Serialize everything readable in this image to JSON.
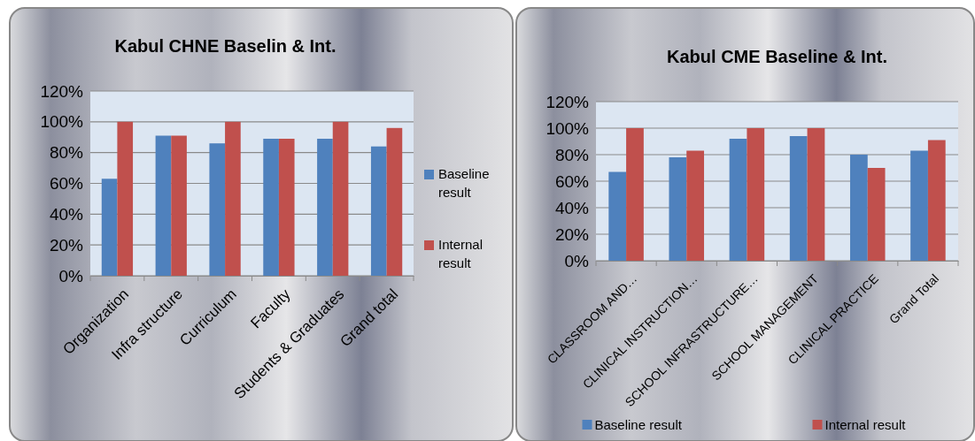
{
  "chart_data": [
    {
      "type": "bar",
      "title": "Kabul CHNE Baselin & Int.",
      "categories": [
        "Organization",
        "Infra structure",
        "Curriculum",
        "Faculty",
        "Students & Graduates",
        "Grand total"
      ],
      "series": [
        {
          "name": "Baseline result",
          "color": "#4f81bd",
          "values": [
            63,
            91,
            86,
            89,
            89,
            84
          ]
        },
        {
          "name": "Internal result",
          "color": "#c0504d",
          "values": [
            100,
            91,
            100,
            89,
            100,
            96
          ]
        }
      ],
      "ylim": [
        0,
        120
      ],
      "yticks": [
        {
          "value": 0,
          "label": "0%"
        },
        {
          "value": 20,
          "label": "20%"
        },
        {
          "value": 40,
          "label": "40%"
        },
        {
          "value": 60,
          "label": "60%"
        },
        {
          "value": 80,
          "label": "80%"
        },
        {
          "value": 100,
          "label": "100%"
        },
        {
          "value": 120,
          "label": "120%"
        }
      ],
      "grid": "y",
      "legend": "right"
    },
    {
      "type": "bar",
      "title": "Kabul CME Baseline & Int.",
      "categories": [
        "CLASSROOM AND…",
        "CLINICAL INSTRUCTION…",
        "SCHOOL INFRASTRUCTURE…",
        "SCHOOL MANAGEMENT",
        "CLINICAL PRACTICE",
        "Grand Total"
      ],
      "series": [
        {
          "name": "Baseline result",
          "color": "#4f81bd",
          "values": [
            67,
            78,
            92,
            94,
            80,
            83
          ]
        },
        {
          "name": "Internal result",
          "color": "#c0504d",
          "values": [
            100,
            83,
            100,
            100,
            70,
            91
          ]
        }
      ],
      "ylim": [
        0,
        120
      ],
      "yticks": [
        {
          "value": 0,
          "label": "0%"
        },
        {
          "value": 20,
          "label": "20%"
        },
        {
          "value": 40,
          "label": "40%"
        },
        {
          "value": 60,
          "label": "60%"
        },
        {
          "value": 80,
          "label": "80%"
        },
        {
          "value": 100,
          "label": "100%"
        },
        {
          "value": 120,
          "label": "120%"
        }
      ],
      "grid": "y",
      "legend": "bottom"
    }
  ]
}
